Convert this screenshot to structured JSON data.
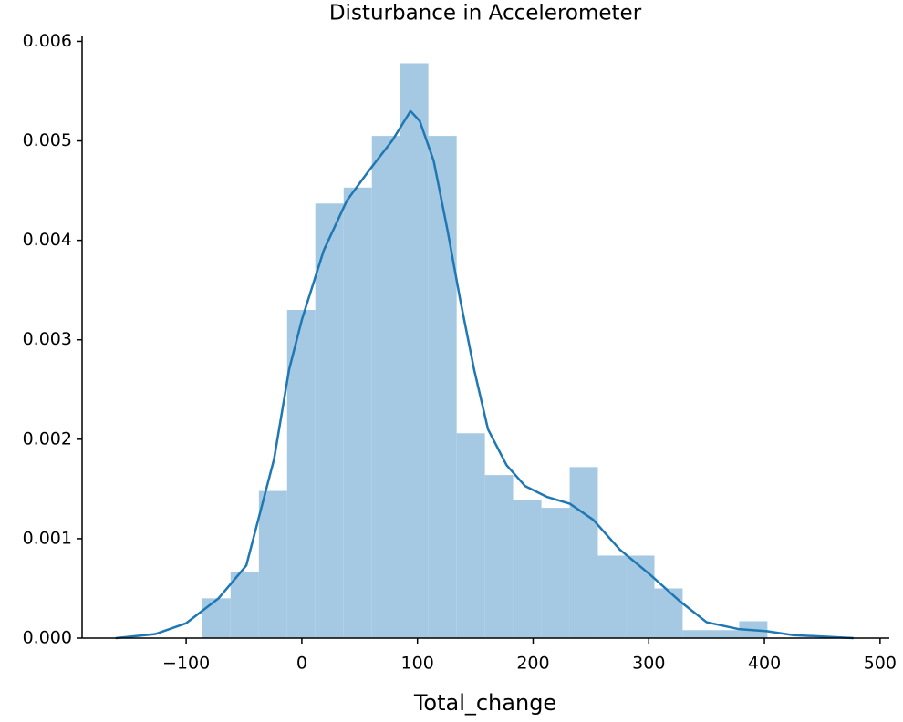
{
  "chart_data": {
    "type": "histogram",
    "title": "Disturbance in Accelerometer",
    "x_label": "Total_change",
    "bins": [
      -86,
      -61.6,
      -37.1,
      -12.7,
      11.7,
      36.2,
      60.6,
      85.0,
      109.4,
      133.9,
      158.3,
      182.7,
      207.2,
      231.6,
      256.0,
      280.5,
      304.9,
      329.3,
      353.7,
      378.2,
      402.6
    ],
    "values": [
      0.0004,
      0.00066,
      0.00148,
      0.0033,
      0.00437,
      0.00453,
      0.00505,
      0.00578,
      0.00505,
      0.00206,
      0.00164,
      0.00139,
      0.00131,
      0.00172,
      0.00083,
      0.00083,
      0.0005,
      8e-05,
      8e-05,
      0.00017
    ],
    "color": "#a5c9e2",
    "kde": {
      "color": "#1f77b4",
      "x": [
        -161,
        -127,
        -100,
        -72,
        -48,
        -24,
        -11,
        0,
        19,
        39,
        58,
        78,
        94,
        102,
        114,
        126,
        137,
        149,
        161,
        177,
        193,
        212,
        232,
        252,
        275,
        301,
        327,
        350,
        378,
        402,
        425,
        477
      ],
      "values": [
        0,
        4e-05,
        0.00015,
        0.0004,
        0.00073,
        0.0018,
        0.0027,
        0.0032,
        0.0039,
        0.0044,
        0.0047,
        0.005,
        0.0053,
        0.0052,
        0.0048,
        0.0041,
        0.0034,
        0.0027,
        0.0021,
        0.00174,
        0.00153,
        0.00142,
        0.00135,
        0.00119,
        0.00089,
        0.00064,
        0.00037,
        0.00016,
        9e-05,
        7e-05,
        3e-05,
        0
      ]
    },
    "xlim": [
      -190,
      508
    ],
    "ylim": [
      0,
      0.00605
    ],
    "xticks": [
      {
        "value": -100,
        "label": "−100"
      },
      0,
      100,
      200,
      300,
      400,
      500
    ],
    "yticks": [
      {
        "value": 0,
        "label": "0.000"
      },
      {
        "value": 0.001,
        "label": "0.001"
      },
      {
        "value": 0.002,
        "label": "0.002"
      },
      {
        "value": 0.003,
        "label": "0.003"
      },
      {
        "value": 0.004,
        "label": "0.004"
      },
      {
        "value": 0.005,
        "label": "0.005"
      },
      {
        "value": 0.006,
        "label": "0.006"
      }
    ]
  }
}
